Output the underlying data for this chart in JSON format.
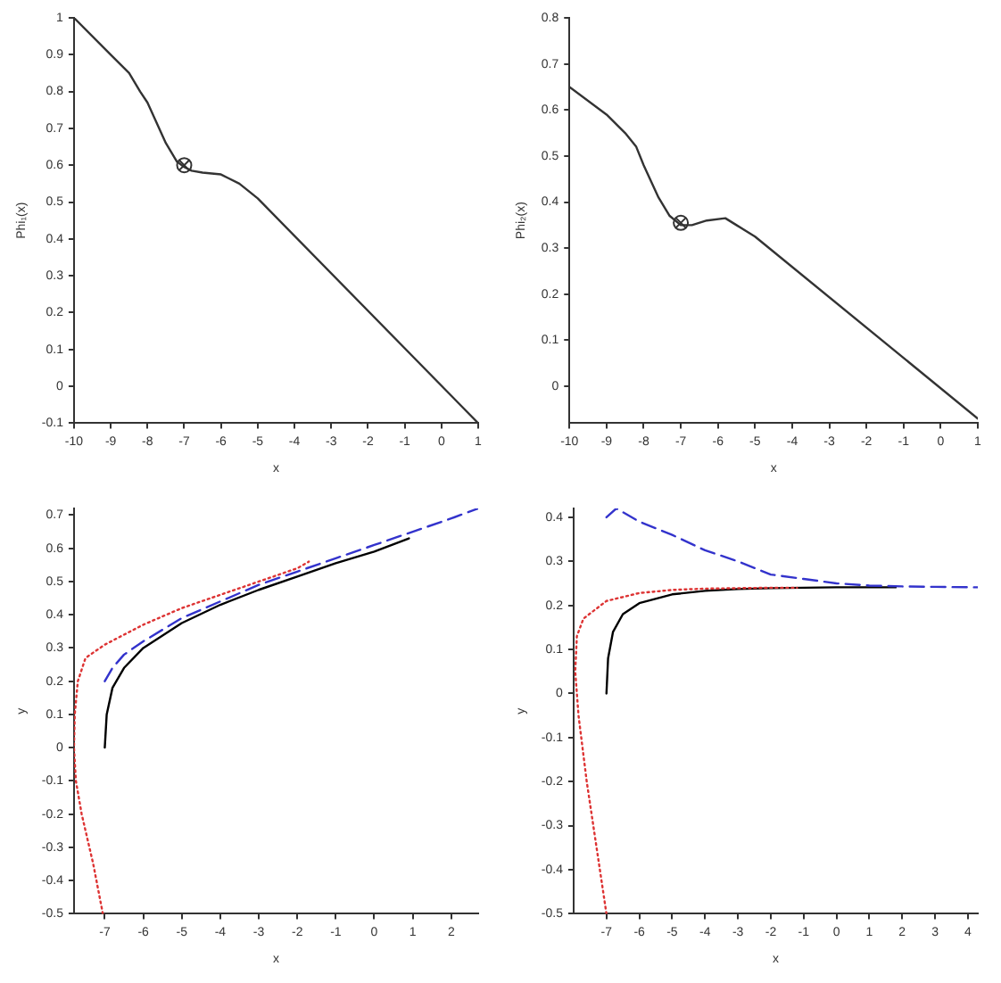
{
  "chart_data": [
    {
      "type": "line",
      "xlabel": "x",
      "ylabel": "Phi₁(x)",
      "xlim": [
        -10,
        1
      ],
      "ylim": [
        -0.1,
        1
      ],
      "xticks": [
        -10,
        -9,
        -8,
        -7,
        -6,
        -5,
        -4,
        -3,
        -2,
        -1,
        0,
        1
      ],
      "yticks": [
        -0.1,
        0,
        0.1,
        0.2,
        0.3,
        0.4,
        0.5,
        0.6,
        0.7,
        0.8,
        0.9,
        1
      ],
      "grid": false,
      "legend": false,
      "series": [
        {
          "type": "line",
          "color": "#333333",
          "line_style": "solid",
          "x": [
            -10,
            -9,
            -8.5,
            -8.2,
            -8,
            -7.5,
            -7.2,
            -7,
            -6.8,
            -6.5,
            -6,
            -5.5,
            -5,
            1
          ],
          "values": [
            1,
            0.9,
            0.85,
            0.8,
            0.77,
            0.66,
            0.61,
            0.595,
            0.585,
            0.58,
            0.575,
            0.55,
            0.51,
            -0.1
          ]
        },
        {
          "type": "scatter",
          "color": "#333333",
          "marker": "circle",
          "x": [
            -7
          ],
          "values": [
            0.6
          ]
        }
      ]
    },
    {
      "type": "line",
      "xlabel": "x",
      "ylabel": "Phi₂(x)",
      "xlim": [
        -10,
        1
      ],
      "ylim": [
        -0.08,
        0.8
      ],
      "xticks": [
        -10,
        -9,
        -8,
        -7,
        -6,
        -5,
        -4,
        -3,
        -2,
        -1,
        0,
        1
      ],
      "yticks": [
        0,
        0.1,
        0.2,
        0.3,
        0.4,
        0.5,
        0.6,
        0.7,
        0.8
      ],
      "grid": false,
      "legend": false,
      "series": [
        {
          "type": "line",
          "color": "#333333",
          "line_style": "solid",
          "x": [
            -10,
            -9,
            -8.5,
            -8.2,
            -8,
            -7.6,
            -7.3,
            -7,
            -6.7,
            -6.3,
            -5.8,
            -5.5,
            -5,
            1
          ],
          "values": [
            0.65,
            0.59,
            0.55,
            0.52,
            0.48,
            0.41,
            0.37,
            0.35,
            0.35,
            0.36,
            0.365,
            0.35,
            0.325,
            -0.07
          ]
        },
        {
          "type": "scatter",
          "color": "#333333",
          "marker": "circle",
          "x": [
            -7
          ],
          "values": [
            0.355
          ]
        }
      ]
    },
    {
      "type": "line",
      "xlabel": "x",
      "ylabel": "y",
      "xlim": [
        -7.8,
        2.7
      ],
      "ylim": [
        -0.5,
        0.72
      ],
      "xticks": [
        -7,
        -6,
        -5,
        -4,
        -3,
        -2,
        -1,
        0,
        1,
        2
      ],
      "yticks": [
        -0.5,
        -0.4,
        -0.3,
        -0.2,
        -0.1,
        0,
        0.1,
        0.2,
        0.3,
        0.4,
        0.5,
        0.6,
        0.7
      ],
      "grid": false,
      "legend": false,
      "series": [
        {
          "type": "line",
          "color": "#000000",
          "line_style": "solid",
          "x": [
            -7,
            -6.95,
            -6.8,
            -6.5,
            -6,
            -5,
            -4,
            -3,
            -2,
            -1,
            0,
            0.9
          ],
          "values": [
            0,
            0.1,
            0.18,
            0.24,
            0.3,
            0.375,
            0.43,
            0.475,
            0.515,
            0.555,
            0.59,
            0.63
          ]
        },
        {
          "type": "line",
          "color": "#3333cc",
          "line_style": "dashed",
          "x": [
            -7,
            -6.8,
            -6.5,
            -6,
            -5,
            -4,
            -3,
            -2,
            -1,
            0,
            1,
            2,
            2.7
          ],
          "values": [
            0.2,
            0.24,
            0.28,
            0.32,
            0.39,
            0.44,
            0.49,
            0.53,
            0.57,
            0.61,
            0.65,
            0.69,
            0.72
          ]
        },
        {
          "type": "line",
          "color": "#dd3333",
          "line_style": "dotted",
          "x": [
            -7.05,
            -7.3,
            -7.6,
            -7.75,
            -7.8,
            -7.78,
            -7.7,
            -7.5,
            -7,
            -6,
            -5,
            -4,
            -3,
            -2,
            -1.7
          ],
          "values": [
            -0.5,
            -0.35,
            -0.2,
            -0.1,
            0,
            0.1,
            0.2,
            0.27,
            0.31,
            0.37,
            0.42,
            0.46,
            0.5,
            0.54,
            0.56
          ]
        }
      ]
    },
    {
      "type": "line",
      "xlabel": "x",
      "ylabel": "y",
      "xlim": [
        -8,
        4.3
      ],
      "ylim": [
        -0.5,
        0.42
      ],
      "xticks": [
        -7,
        -6,
        -5,
        -4,
        -3,
        -2,
        -1,
        0,
        1,
        2,
        3,
        4
      ],
      "yticks": [
        -0.5,
        -0.4,
        -0.3,
        -0.2,
        -0.1,
        0,
        0.1,
        0.2,
        0.3,
        0.4
      ],
      "grid": false,
      "legend": false,
      "series": [
        {
          "type": "line",
          "color": "#000000",
          "line_style": "solid",
          "x": [
            -7,
            -6.95,
            -6.8,
            -6.5,
            -6,
            -5,
            -4,
            -3,
            -2,
            -1,
            0,
            1,
            1.8
          ],
          "values": [
            0,
            0.08,
            0.14,
            0.18,
            0.205,
            0.225,
            0.233,
            0.237,
            0.239,
            0.24,
            0.241,
            0.241,
            0.241
          ]
        },
        {
          "type": "line",
          "color": "#3333cc",
          "line_style": "dashed",
          "x": [
            -7,
            -6.7,
            -6,
            -5,
            -4,
            -3,
            -2,
            -1,
            0,
            1,
            2,
            3,
            4.3
          ],
          "values": [
            0.4,
            0.42,
            0.39,
            0.36,
            0.325,
            0.3,
            0.27,
            0.26,
            0.25,
            0.245,
            0.243,
            0.242,
            0.241
          ]
        },
        {
          "type": "line",
          "color": "#dd3333",
          "line_style": "dotted",
          "x": [
            -7,
            -7.3,
            -7.6,
            -7.85,
            -7.95,
            -7.9,
            -7.7,
            -7,
            -6,
            -5,
            -4,
            -2,
            -1.2
          ],
          "values": [
            -0.5,
            -0.35,
            -0.2,
            -0.05,
            0.05,
            0.13,
            0.17,
            0.21,
            0.228,
            0.235,
            0.238,
            0.24,
            0.24
          ]
        }
      ]
    }
  ]
}
